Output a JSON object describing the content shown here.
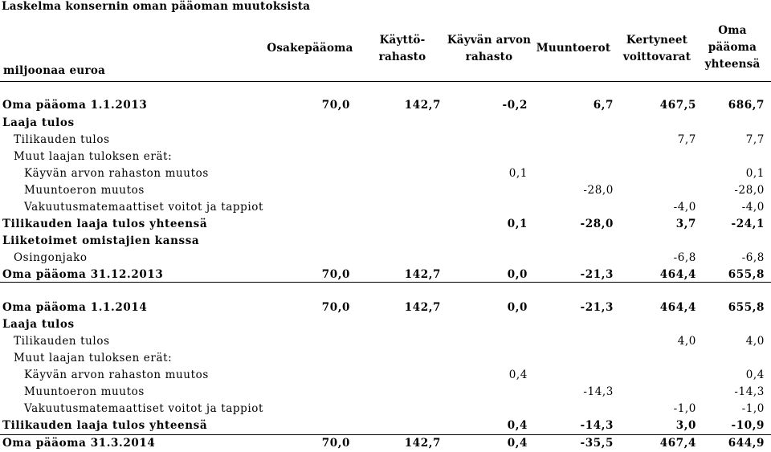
{
  "title": "Laskelma konsernin oman pääoman muutoksista",
  "unit_label": "miljoonaa euroa",
  "columns": [
    "Osakepääoma",
    "Käyttö-\nrahasto",
    "Käyvän arvon\nrahasto",
    "Muuntoerot",
    "Kertyneet\nvoittovarat",
    "Oma\npääoma\nyhteensä"
  ],
  "rows": [
    {
      "label": "Oma pääoma 1.1.2013",
      "indent": 0,
      "bold": true,
      "values": [
        "70,0",
        "142,7",
        "-0,2",
        "6,7",
        "467,5",
        "686,7"
      ]
    },
    {
      "label": "Laaja tulos",
      "indent": 0,
      "bold": true,
      "values": [
        "",
        "",
        "",
        "",
        "",
        ""
      ]
    },
    {
      "label": "Tilikauden tulos",
      "indent": 1,
      "bold": false,
      "values": [
        "",
        "",
        "",
        "",
        "7,7",
        "7,7"
      ]
    },
    {
      "label": "Muut laajan tuloksen erät:",
      "indent": 1,
      "bold": false,
      "values": [
        "",
        "",
        "",
        "",
        "",
        ""
      ]
    },
    {
      "label": "Käyvän arvon rahaston muutos",
      "indent": 2,
      "bold": false,
      "values": [
        "",
        "",
        "0,1",
        "",
        "",
        "0,1"
      ]
    },
    {
      "label": "Muuntoeron muutos",
      "indent": 2,
      "bold": false,
      "values": [
        "",
        "",
        "",
        "-28,0",
        "",
        "-28,0"
      ]
    },
    {
      "label": "Vakuutusmatemaattiset voitot ja tappiot",
      "indent": 2,
      "bold": false,
      "values": [
        "",
        "",
        "",
        "",
        "-4,0",
        "-4,0"
      ]
    },
    {
      "label": "Tilikauden laaja tulos yhteensä",
      "indent": 0,
      "bold": true,
      "values": [
        "",
        "",
        "0,1",
        "-28,0",
        "3,7",
        "-24,1"
      ]
    },
    {
      "label": "Liiketoimet omistajien kanssa",
      "indent": 0,
      "bold": true,
      "values": [
        "",
        "",
        "",
        "",
        "",
        ""
      ]
    },
    {
      "label": "Osingonjako",
      "indent": 1,
      "bold": false,
      "values": [
        "",
        "",
        "",
        "",
        "-6,8",
        "-6,8"
      ]
    },
    {
      "label": "Oma pääoma 31.12.2013",
      "indent": 0,
      "bold": true,
      "values": [
        "70,0",
        "142,7",
        "0,0",
        "-21,3",
        "464,4",
        "655,8"
      ]
    },
    {
      "label": "Oma pääoma 1.1.2014",
      "indent": 0,
      "bold": true,
      "values": [
        "70,0",
        "142,7",
        "0,0",
        "-21,3",
        "464,4",
        "655,8"
      ]
    },
    {
      "label": "Laaja tulos",
      "indent": 0,
      "bold": true,
      "values": [
        "",
        "",
        "",
        "",
        "",
        ""
      ]
    },
    {
      "label": "Tilikauden tulos",
      "indent": 1,
      "bold": false,
      "values": [
        "",
        "",
        "",
        "",
        "4,0",
        "4,0"
      ]
    },
    {
      "label": "Muut laajan tuloksen erät:",
      "indent": 1,
      "bold": false,
      "values": [
        "",
        "",
        "",
        "",
        "",
        ""
      ]
    },
    {
      "label": "Käyvän arvon rahaston muutos",
      "indent": 2,
      "bold": false,
      "values": [
        "",
        "",
        "0,4",
        "",
        "",
        "0,4"
      ]
    },
    {
      "label": "Muuntoeron muutos",
      "indent": 2,
      "bold": false,
      "values": [
        "",
        "",
        "",
        "-14,3",
        "",
        "-14,3"
      ]
    },
    {
      "label": "Vakuutusmatemaattiset voitot ja tappiot",
      "indent": 2,
      "bold": false,
      "values": [
        "",
        "",
        "",
        "",
        "-1,0",
        "-1,0"
      ]
    },
    {
      "label": "Tilikauden laaja tulos yhteensä",
      "indent": 0,
      "bold": true,
      "values": [
        "",
        "",
        "0,4",
        "-14,3",
        "3,0",
        "-10,9"
      ]
    },
    {
      "label": "Oma pääoma 31.3.2014",
      "indent": 0,
      "bold": true,
      "values": [
        "70,0",
        "142,7",
        "0,4",
        "-35,5",
        "467,4",
        "644,9"
      ]
    }
  ]
}
